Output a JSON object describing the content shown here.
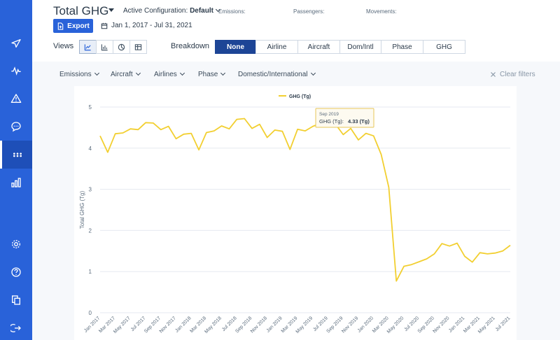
{
  "header": {
    "title": "Total GHG",
    "config_label": "Active Configuration:",
    "config_value": "Default",
    "emissions_label": "Emissions:",
    "passengers_label": "Passengers:",
    "movements_label": "Movements:",
    "export_label": "Export",
    "date_range": "Jan 1, 2017 - Jul 31, 2021"
  },
  "views": {
    "label": "Views",
    "options": [
      "line-chart-icon",
      "bar-chart-icon",
      "pie-chart-icon",
      "table-icon"
    ],
    "selected": "line-chart-icon"
  },
  "breakdown": {
    "label": "Breakdown",
    "options": [
      "None",
      "Airline",
      "Aircraft",
      "Dom/Intl",
      "Phase",
      "GHG"
    ],
    "selected": "None"
  },
  "filters": {
    "items": [
      "Emissions",
      "Aircraft",
      "Airlines",
      "Phase",
      "Domestic/International"
    ],
    "clear_label": "Clear filters"
  },
  "sidebar": {
    "icons": [
      "plane-icon",
      "activity-icon",
      "alert-icon",
      "chat-icon",
      "dots-icon",
      "bar-chart-icon",
      "settings-icon",
      "help-icon",
      "copy-icon",
      "logout-icon"
    ],
    "active": "dots-icon"
  },
  "colors": {
    "sidebar": "#2962d9",
    "accent": "#1d4596",
    "series": "#f2cf30"
  },
  "tooltip": {
    "date": "Sep 2019",
    "label": "GHG (Tg):",
    "value": "4.33 (Tg)"
  },
  "chart_data": {
    "type": "line",
    "ylabel": "Total GHG (Tg)",
    "ylim": [
      0,
      5
    ],
    "yticks": [
      0,
      1,
      2,
      3,
      4,
      5
    ],
    "xtick_labels": [
      "Jan 2017",
      "Mar 2017",
      "May 2017",
      "Jul 2017",
      "Sep 2017",
      "Nov 2017",
      "Jan 2018",
      "Mar 2018",
      "May 2018",
      "Jul 2018",
      "Sep 2018",
      "Nov 2018",
      "Jan 2019",
      "Mar 2019",
      "May 2019",
      "Jul 2019",
      "Sep 2019",
      "Nov 2019",
      "Jan 2020",
      "Mar 2020",
      "May 2020",
      "Jul 2020",
      "Sep 2020",
      "Nov 2020",
      "Jan 2021",
      "Mar 2021",
      "May 2021",
      "Jul 2021"
    ],
    "grid": true,
    "legend": "top-center",
    "series": [
      {
        "name": "GHG (Tg)",
        "values": [
          4.3,
          3.9,
          4.35,
          4.37,
          4.47,
          4.45,
          4.62,
          4.61,
          4.45,
          4.53,
          4.23,
          4.34,
          4.36,
          3.96,
          4.38,
          4.42,
          4.54,
          4.47,
          4.7,
          4.72,
          4.48,
          4.58,
          4.26,
          4.44,
          4.41,
          3.97,
          4.46,
          4.42,
          4.53,
          4.6,
          4.63,
          4.58,
          4.33,
          4.48,
          4.2,
          4.36,
          4.3,
          3.85,
          3.05,
          0.77,
          1.13,
          1.17,
          1.24,
          1.31,
          1.43,
          1.68,
          1.62,
          1.69,
          1.37,
          1.23,
          1.46,
          1.43,
          1.45,
          1.5,
          1.64
        ]
      }
    ]
  }
}
